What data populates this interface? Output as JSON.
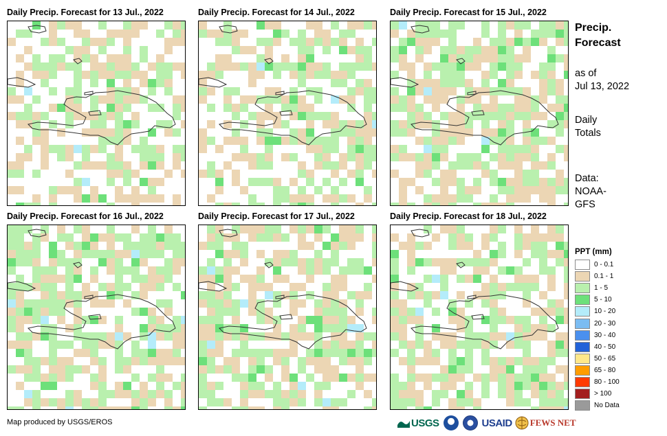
{
  "panels": [
    {
      "title": "Daily Precip. Forecast for 13 Jul., 2022",
      "seed": 13,
      "green_bias": 0.3,
      "bias_region": "center"
    },
    {
      "title": "Daily Precip. Forecast for 14 Jul., 2022",
      "seed": 14,
      "green_bias": 0.35,
      "bias_region": "east"
    },
    {
      "title": "Daily Precip. Forecast for 15 Jul., 2022",
      "seed": 15,
      "green_bias": 0.45,
      "bias_region": "north"
    },
    {
      "title": "Daily Precip. Forecast for 16 Jul., 2022",
      "seed": 16,
      "green_bias": 0.55,
      "bias_region": "northwest"
    },
    {
      "title": "Daily Precip. Forecast for 17 Jul., 2022",
      "seed": 17,
      "green_bias": 0.4,
      "bias_region": "southwest"
    },
    {
      "title": "Daily Precip. Forecast for 18 Jul., 2022",
      "seed": 18,
      "green_bias": 0.5,
      "bias_region": "south"
    }
  ],
  "sidebar": {
    "title_line1": "Precip.",
    "title_line2": "Forecast",
    "asof_line1": "as of",
    "asof_line2": "Jul 13, 2022",
    "totals_line1": "Daily",
    "totals_line2": "Totals",
    "data_line1": "Data:",
    "data_line2": "NOAA-",
    "data_line3": "GFS"
  },
  "legend": {
    "title": "PPT (mm)",
    "items": [
      {
        "label": "0 - 0.1",
        "color": "#ffffff"
      },
      {
        "label": "0.1 - 1",
        "color": "#ecd6b4"
      },
      {
        "label": "1 - 5",
        "color": "#b9f0ae"
      },
      {
        "label": "5 - 10",
        "color": "#6de07a"
      },
      {
        "label": "10 - 20",
        "color": "#b4ecfa"
      },
      {
        "label": "20 - 30",
        "color": "#7bbcf2"
      },
      {
        "label": "30 - 40",
        "color": "#4a90ee"
      },
      {
        "label": "40 - 50",
        "color": "#2262d8"
      },
      {
        "label": "50 - 65",
        "color": "#ffe88a"
      },
      {
        "label": "65 - 80",
        "color": "#ff9d00"
      },
      {
        "label": "80 - 100",
        "color": "#ff3a00"
      },
      {
        "label": "> 100",
        "color": "#a31f1f"
      },
      {
        "label": "No Data",
        "color": "#9a9a9a"
      }
    ]
  },
  "footer": {
    "credit": "Map produced by USGS/EROS",
    "logo_usgs": "USGS",
    "logo_usaid": "USAID",
    "logo_fews": "FEWS NET"
  },
  "colors": {
    "coastline": "#333333"
  }
}
